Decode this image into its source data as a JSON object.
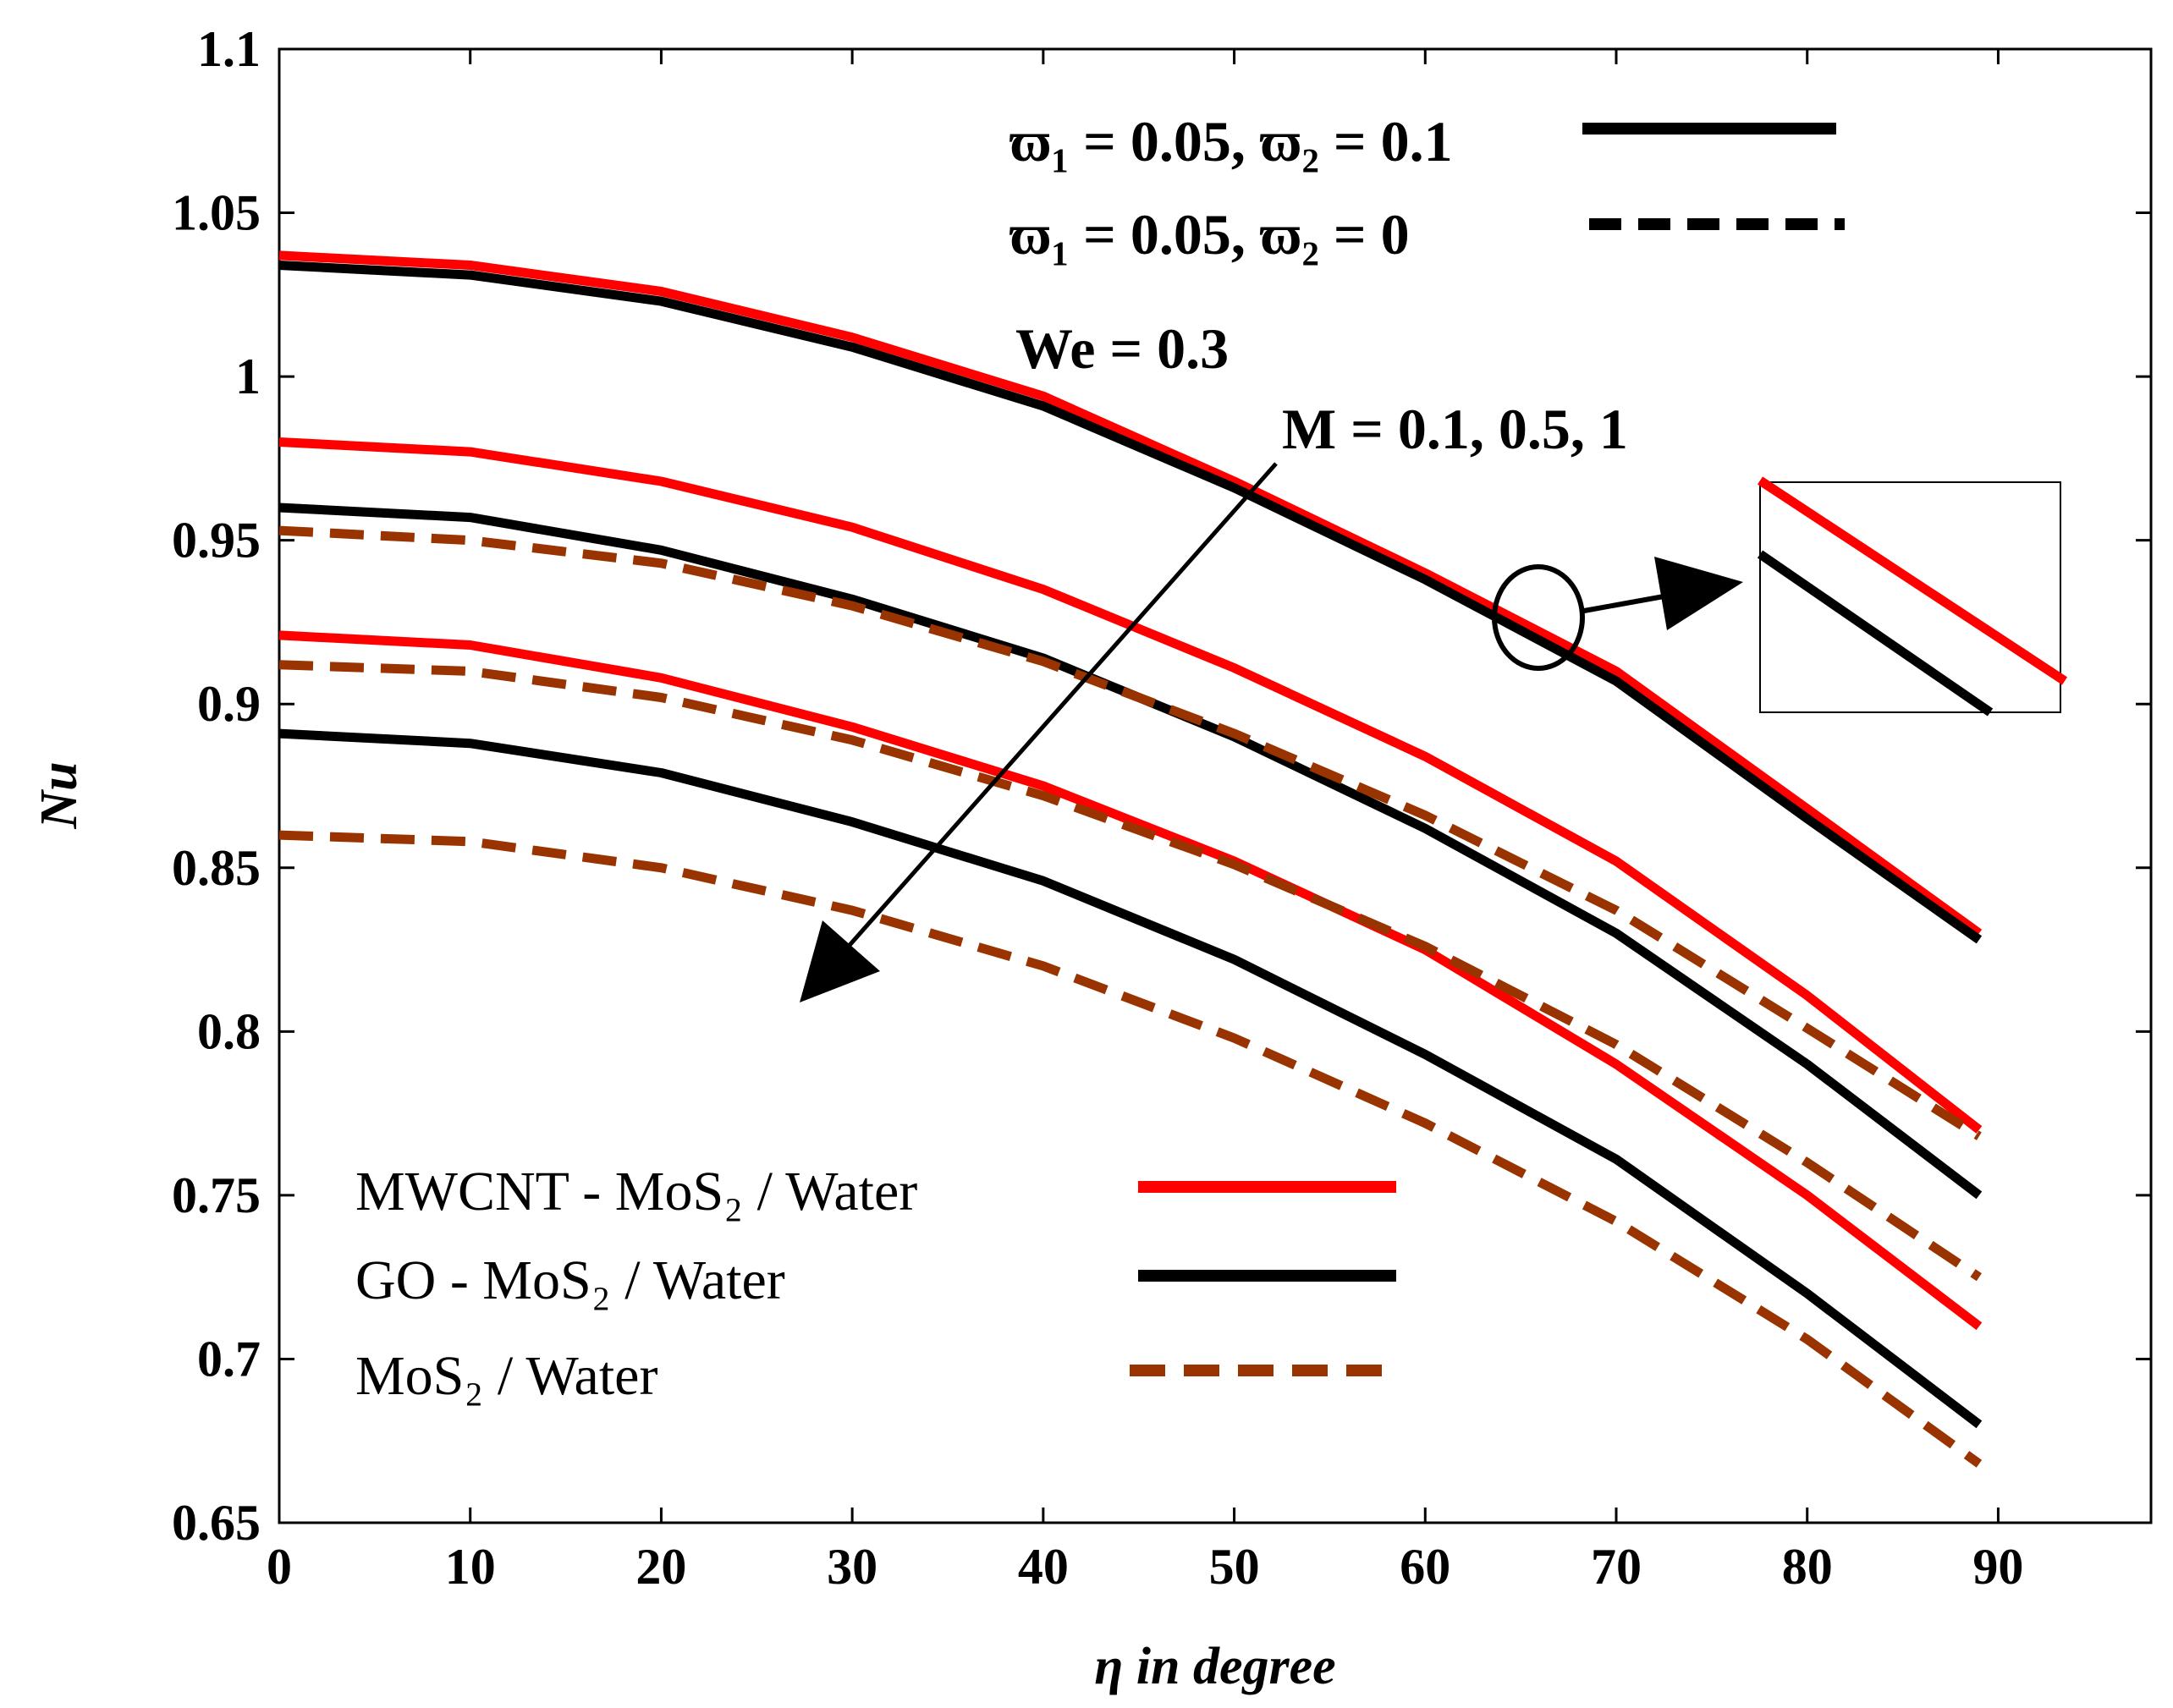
{
  "chart_data": {
    "type": "line",
    "xlabel": "η in degree",
    "ylabel": "Nu",
    "xlim": [
      0,
      98
    ],
    "ylim": [
      0.65,
      1.1
    ],
    "xticks": [
      "0",
      "10",
      "20",
      "30",
      "40",
      "50",
      "60",
      "70",
      "80",
      "90"
    ],
    "yticks": [
      "0.65",
      "0.7",
      "0.75",
      "0.8",
      "0.85",
      "0.9",
      "0.95",
      "1",
      "1.05",
      "1.1"
    ],
    "grid": false,
    "x": [
      0,
      10,
      20,
      30,
      40,
      50,
      60,
      70,
      80,
      89
    ],
    "series": [
      {
        "fluid": "mwcnt",
        "style": "solid",
        "color": "#ff0000",
        "M": "0.1",
        "values": [
          1.037,
          1.034,
          1.026,
          1.012,
          0.994,
          0.968,
          0.94,
          0.91,
          0.868,
          0.83
        ]
      },
      {
        "fluid": "go",
        "style": "solid",
        "color": "#000000",
        "M": "0.1",
        "values": [
          1.034,
          1.031,
          1.023,
          1.009,
          0.991,
          0.966,
          0.938,
          0.907,
          0.865,
          0.828
        ]
      },
      {
        "fluid": "mwcnt",
        "style": "solid",
        "color": "#ff0000",
        "M": "0.5",
        "values": [
          0.98,
          0.977,
          0.968,
          0.954,
          0.935,
          0.911,
          0.884,
          0.852,
          0.811,
          0.77
        ]
      },
      {
        "fluid": "go",
        "style": "solid",
        "color": "#000000",
        "M": "0.5",
        "values": [
          0.96,
          0.957,
          0.947,
          0.932,
          0.914,
          0.89,
          0.862,
          0.83,
          0.79,
          0.75
        ]
      },
      {
        "fluid": "mos2",
        "style": "dashed",
        "color": "#993300",
        "M": "0.5",
        "values": [
          0.953,
          0.95,
          0.943,
          0.93,
          0.913,
          0.891,
          0.866,
          0.837,
          0.801,
          0.768
        ]
      },
      {
        "fluid": "mwcnt",
        "style": "solid",
        "color": "#ff0000",
        "M": "1",
        "values": [
          0.921,
          0.918,
          0.908,
          0.893,
          0.875,
          0.852,
          0.825,
          0.79,
          0.75,
          0.71
        ]
      },
      {
        "fluid": "mos2",
        "style": "dashed",
        "color": "#993300",
        "M": "1a",
        "values": [
          0.912,
          0.91,
          0.902,
          0.889,
          0.872,
          0.851,
          0.826,
          0.796,
          0.76,
          0.725
        ]
      },
      {
        "fluid": "go",
        "style": "solid",
        "color": "#000000",
        "M": "1",
        "values": [
          0.891,
          0.888,
          0.879,
          0.864,
          0.846,
          0.822,
          0.793,
          0.761,
          0.72,
          0.68
        ]
      },
      {
        "fluid": "mos2",
        "style": "dashed",
        "color": "#993300",
        "M": "1b",
        "values": [
          0.86,
          0.858,
          0.85,
          0.837,
          0.82,
          0.798,
          0.772,
          0.742,
          0.706,
          0.668
        ]
      }
    ],
    "annotations": {
      "omega_solid": "ϖ₁ = 0.05, ϖ₂ = 0.1",
      "omega_dashed": "ϖ₁ = 0.05, ϖ₂ = 0",
      "we": "We = 0.3",
      "m_values": "M = 0.1, 0.5, 1"
    },
    "legend": [
      {
        "label": "MWCNT - MoS₂ / Water",
        "color": "#ff0000",
        "style": "solid"
      },
      {
        "label": "GO - MoS₂ / Water",
        "color": "#000000",
        "style": "solid"
      },
      {
        "label": "MoS₂ / Water",
        "color": "#993300",
        "style": "dashed"
      }
    ],
    "legend_position": "bottom-left"
  }
}
